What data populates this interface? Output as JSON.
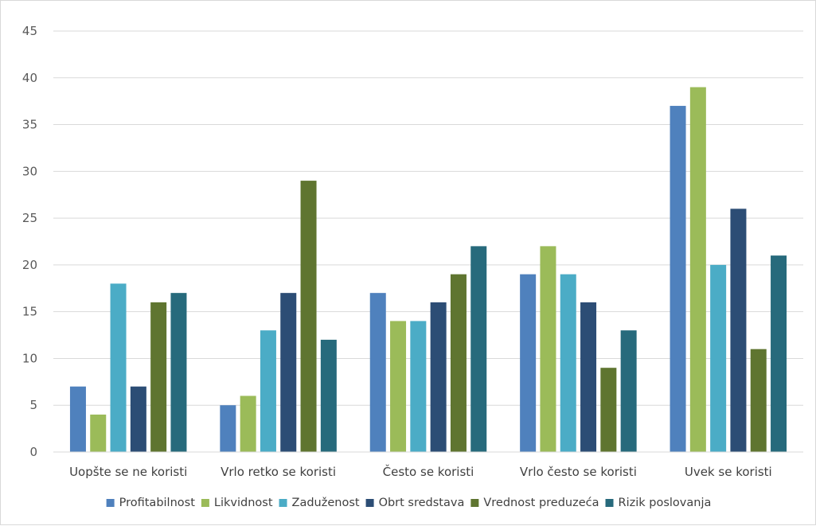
{
  "chart_data": {
    "type": "bar",
    "categories": [
      "Uopšte se ne koristi",
      "Vrlo retko se koristi",
      "Često se koristi",
      "Vrlo često se koristi",
      "Uvek se koristi"
    ],
    "series": [
      {
        "name": "Profitabilnost",
        "color": "#4f81bd",
        "values": [
          7,
          5,
          17,
          19,
          37
        ]
      },
      {
        "name": "Likvidnost",
        "color": "#9bbb59",
        "values": [
          4,
          6,
          14,
          22,
          39
        ]
      },
      {
        "name": "Zaduženost",
        "color": "#4bacc6",
        "values": [
          18,
          13,
          14,
          19,
          20
        ]
      },
      {
        "name": "Obrt sredstava",
        "color": "#2c4d75",
        "values": [
          7,
          17,
          16,
          16,
          26
        ]
      },
      {
        "name": "Vrednost preduzeća",
        "color": "#5f7530",
        "values": [
          16,
          29,
          19,
          9,
          11
        ]
      },
      {
        "name": "Rizik poslovanja",
        "color": "#276a7c",
        "values": [
          17,
          12,
          22,
          13,
          21
        ]
      }
    ],
    "ylim": [
      0,
      45
    ],
    "yticks": [
      0,
      5,
      10,
      15,
      20,
      25,
      30,
      35,
      40,
      45
    ],
    "grid": true,
    "legend_position": "bottom"
  }
}
